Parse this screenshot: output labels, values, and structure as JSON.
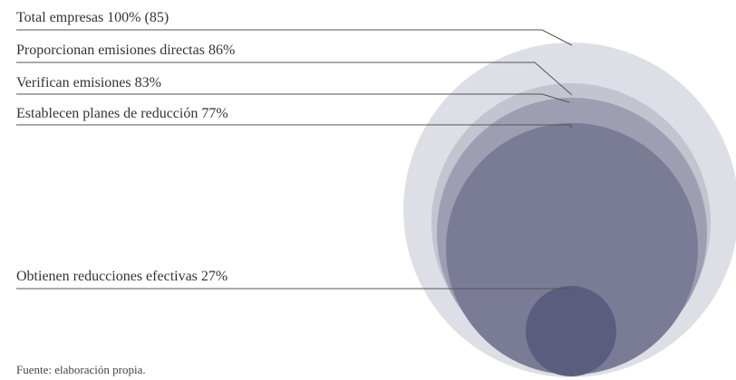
{
  "chart_data": {
    "type": "nested-bubble",
    "title": "",
    "series": [
      {
        "label": "Total empresas 100% (85)",
        "percent": 100,
        "count": 85,
        "color": "#dedfe6"
      },
      {
        "label": "Proporcionan emisiones directas 86%",
        "percent": 86,
        "color": "#c4c4d1"
      },
      {
        "label": "Verifican emisiones 83%",
        "percent": 83,
        "color": "#9e9eb2"
      },
      {
        "label": "Establecen planes de reducción 77%",
        "percent": 77,
        "color": "#7a7c96"
      },
      {
        "label": "Obtienen reducciones efectivas 27%",
        "percent": 27,
        "color": "#5b5d7e"
      }
    ],
    "source": "Fuente: elaboración propia."
  }
}
